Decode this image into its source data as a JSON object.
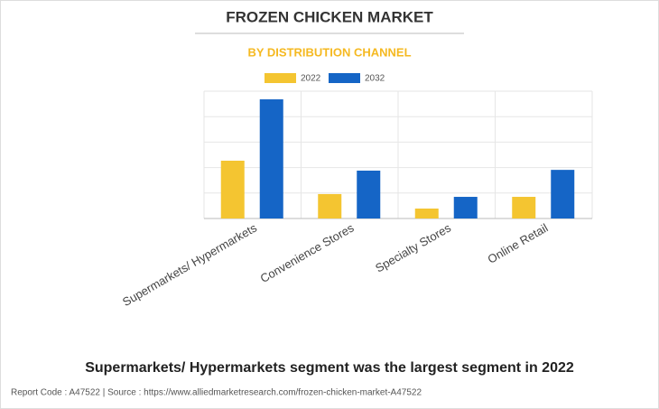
{
  "chart_data": {
    "type": "bar",
    "title": "FROZEN CHICKEN MARKET",
    "subtitle": "BY DISTRIBUTION CHANNEL",
    "categories": [
      "Supermarkets/ Hypermarkets",
      "Convenience Stores",
      "Specialty Stores",
      "Online Retail"
    ],
    "series": [
      {
        "name": "2022",
        "color": "#f4c531",
        "values": [
          2.27,
          0.96,
          0.39,
          0.85
        ]
      },
      {
        "name": "2032",
        "color": "#1565c6",
        "values": [
          4.68,
          1.88,
          0.85,
          1.91
        ]
      }
    ],
    "ylim": [
      0,
      5
    ],
    "yticks": [
      0,
      1,
      2,
      3,
      4,
      5
    ],
    "grid": true,
    "show_ytick_labels": false,
    "annotation": "Supermarkets/ Hypermarkets segment was the largest segment in 2022",
    "footer": "Report Code : A47522  |  Source : https://www.alliedmarketresearch.com/frozen-chicken-market-A47522"
  }
}
